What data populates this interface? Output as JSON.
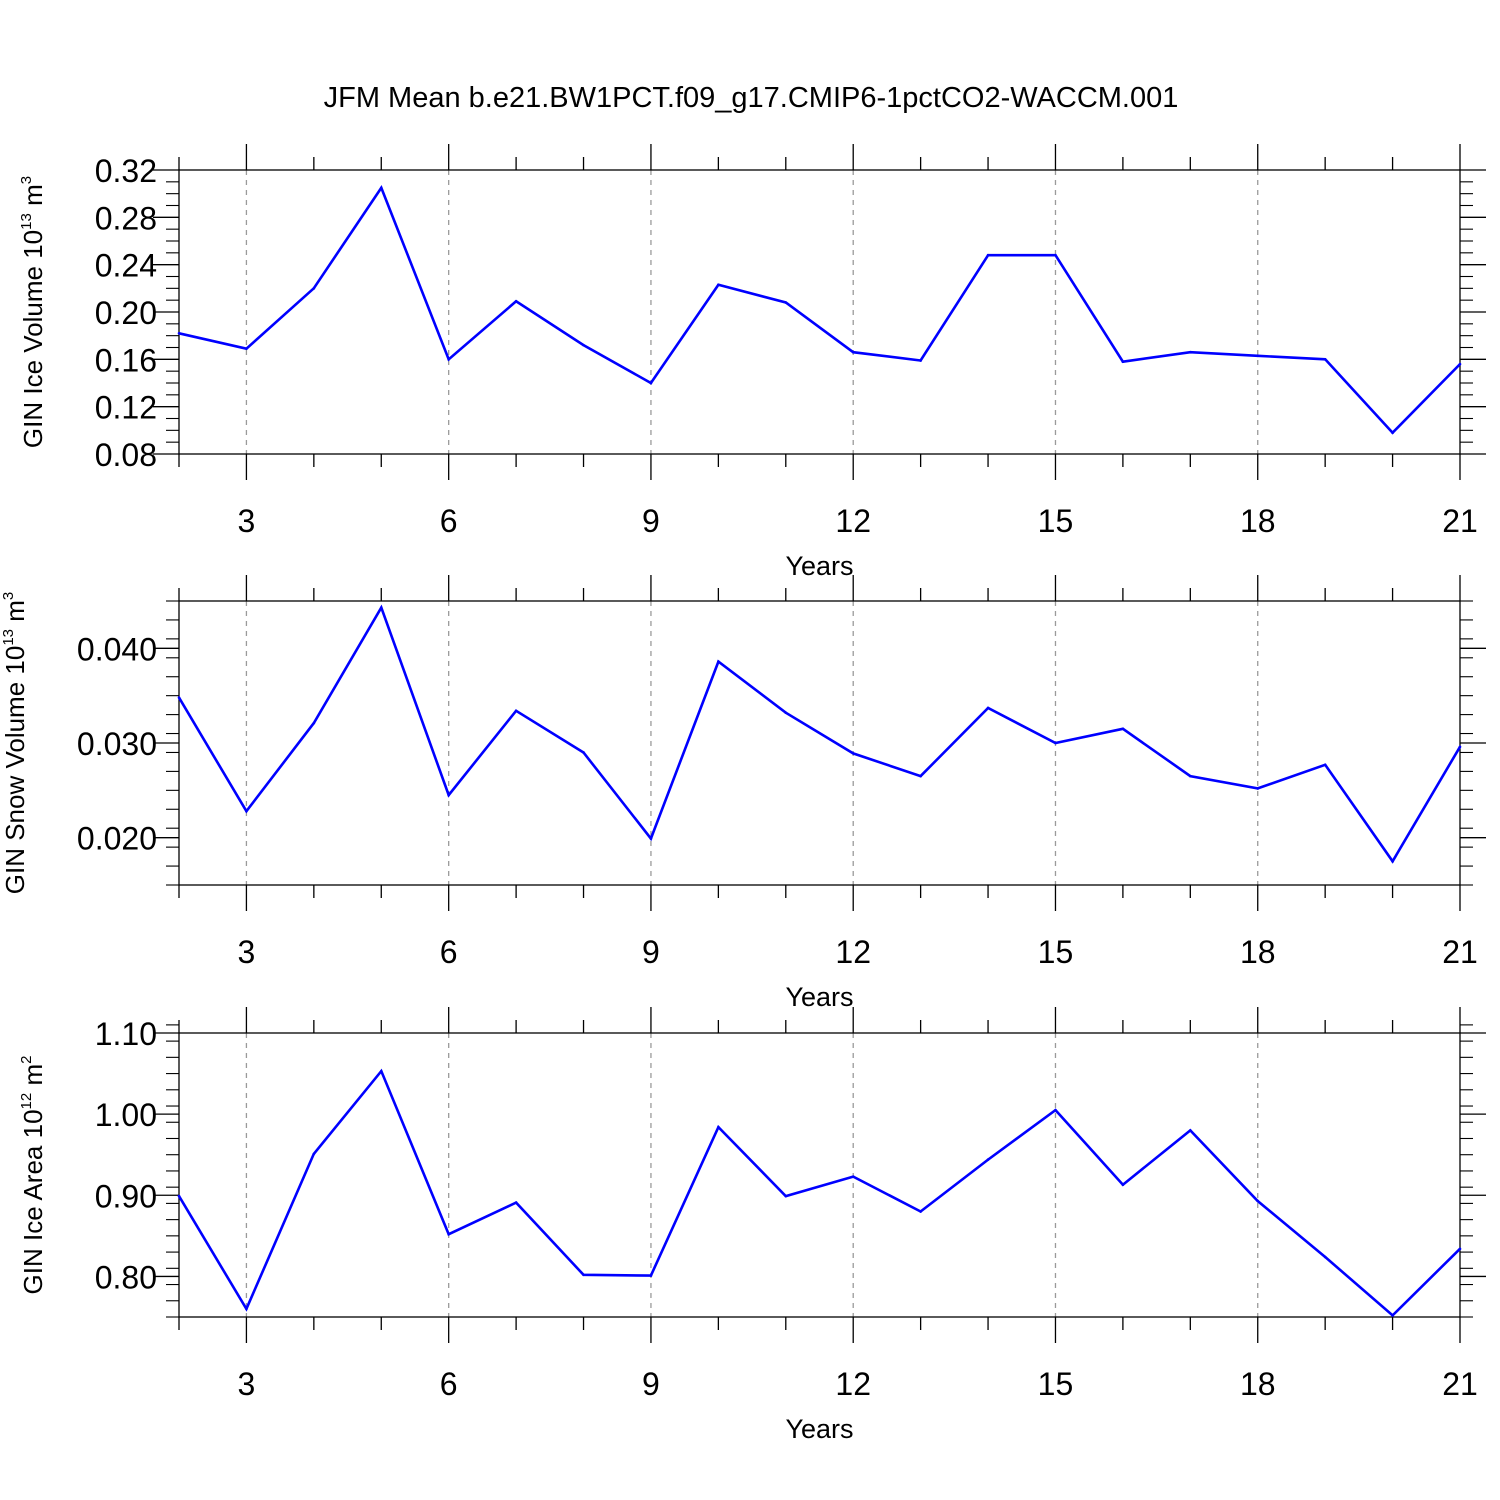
{
  "figure": {
    "title": "JFM Mean b.e21.BW1PCT.f09_g17.CMIP6-1pctCO2-WACCM.001"
  },
  "chart_data": [
    {
      "type": "line",
      "ylabel": {
        "text": "GIN Ice Volume 10",
        "exp": "13",
        "unit": " m",
        "unit_exp": "3"
      },
      "xlabel": "Years",
      "xlim": [
        2,
        21
      ],
      "ylim": [
        0.08,
        0.32
      ],
      "xticks": [
        3,
        6,
        9,
        12,
        15,
        18,
        21
      ],
      "yticks": [
        0.08,
        0.12,
        0.16,
        0.2,
        0.24,
        0.28,
        0.32
      ],
      "ytick_labels": [
        "0.08",
        "0.12",
        "0.16",
        "0.20",
        "0.24",
        "0.28",
        "0.32"
      ],
      "y_minor_step": 0.01,
      "grid": "vertical-dashed",
      "color": "#0000ff",
      "x": [
        2,
        3,
        4,
        5,
        6,
        7,
        8,
        9,
        10,
        11,
        12,
        13,
        14,
        15,
        16,
        17,
        18,
        19,
        20,
        21
      ],
      "y": [
        0.182,
        0.169,
        0.22,
        0.305,
        0.16,
        0.209,
        0.172,
        0.14,
        0.223,
        0.208,
        0.166,
        0.159,
        0.248,
        0.248,
        0.158,
        0.166,
        0.163,
        0.16,
        0.098,
        0.156
      ]
    },
    {
      "type": "line",
      "ylabel": {
        "text": "GIN Snow Volume 10",
        "exp": "13",
        "unit": " m",
        "unit_exp": "3"
      },
      "xlabel": "Years",
      "xlim": [
        2,
        21
      ],
      "ylim": [
        0.015,
        0.045
      ],
      "xticks": [
        3,
        6,
        9,
        12,
        15,
        18,
        21
      ],
      "yticks": [
        0.02,
        0.03,
        0.04
      ],
      "ytick_labels": [
        "0.020",
        "0.030",
        "0.040"
      ],
      "y_minor_step": 0.002,
      "grid": "vertical-dashed",
      "color": "#0000ff",
      "x": [
        2,
        3,
        4,
        5,
        6,
        7,
        8,
        9,
        10,
        11,
        12,
        13,
        14,
        15,
        16,
        17,
        18,
        19,
        20,
        21
      ],
      "y": [
        0.0348,
        0.0228,
        0.0321,
        0.0443,
        0.0245,
        0.0334,
        0.029,
        0.0199,
        0.0386,
        0.0332,
        0.0289,
        0.0265,
        0.0337,
        0.03,
        0.0315,
        0.0265,
        0.0252,
        0.0277,
        0.0175,
        0.0296
      ]
    },
    {
      "type": "line",
      "ylabel": {
        "text": "GIN Ice Area 10",
        "exp": "12",
        "unit": " m",
        "unit_exp": "2"
      },
      "xlabel": "Years",
      "xlim": [
        2,
        21
      ],
      "ylim": [
        0.75,
        1.1
      ],
      "xticks": [
        3,
        6,
        9,
        12,
        15,
        18,
        21
      ],
      "yticks": [
        0.8,
        0.9,
        1.0,
        1.1
      ],
      "ytick_labels": [
        "0.80",
        "0.90",
        "1.00",
        "1.10"
      ],
      "y_minor_step": 0.02,
      "grid": "vertical-dashed",
      "color": "#0000ff",
      "x": [
        2,
        3,
        4,
        5,
        6,
        7,
        8,
        9,
        10,
        11,
        12,
        13,
        14,
        15,
        16,
        17,
        18,
        19,
        20,
        21
      ],
      "y": [
        0.899,
        0.76,
        0.951,
        1.053,
        0.852,
        0.891,
        0.802,
        0.801,
        0.984,
        0.899,
        0.923,
        0.88,
        0.944,
        1.005,
        0.913,
        0.98,
        0.893,
        0.824,
        0.752,
        0.834
      ]
    }
  ]
}
